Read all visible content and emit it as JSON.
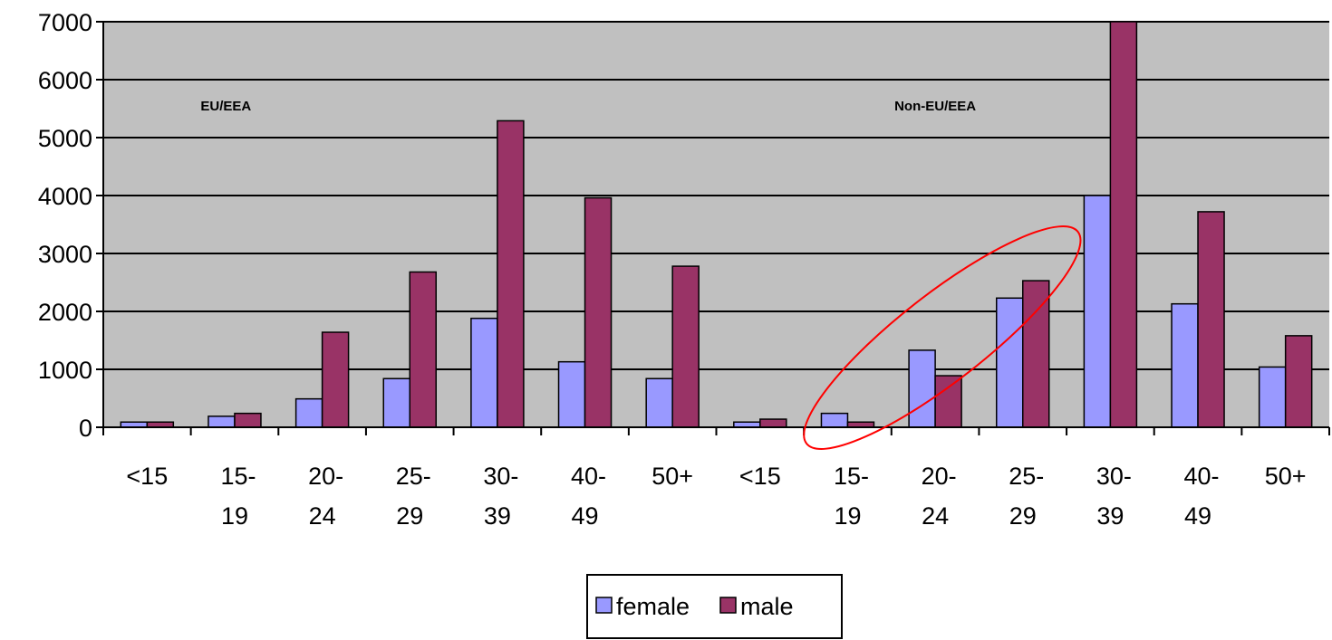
{
  "chart_data": {
    "type": "bar",
    "title": "",
    "xlabel": "",
    "ylabel": "",
    "ylim": [
      0,
      7000
    ],
    "yticks": [
      0,
      1000,
      2000,
      3000,
      4000,
      5000,
      6000,
      7000
    ],
    "grid": true,
    "legend_position": "bottom-center",
    "categories": [
      [
        "<15"
      ],
      [
        "15-",
        "19"
      ],
      [
        "20-",
        "24"
      ],
      [
        "25-",
        "29"
      ],
      [
        "30-",
        "39"
      ],
      [
        "40-",
        "49"
      ],
      [
        "50+"
      ],
      [
        "<15"
      ],
      [
        "15-",
        "19"
      ],
      [
        "20-",
        "24"
      ],
      [
        "25-",
        "29"
      ],
      [
        "30-",
        "39"
      ],
      [
        "40-",
        "49"
      ],
      [
        "50+"
      ]
    ],
    "series": [
      {
        "name": "female",
        "color": "#9999ff",
        "values": [
          90,
          190,
          490,
          840,
          1880,
          1130,
          840,
          90,
          240,
          1330,
          2230,
          4000,
          2130,
          1040
        ]
      },
      {
        "name": "male",
        "color": "#993366",
        "values": [
          90,
          240,
          1640,
          2680,
          5290,
          3960,
          2780,
          140,
          90,
          890,
          2530,
          7000,
          3720,
          1580
        ]
      }
    ],
    "annotations": [
      {
        "text": "EU/EEA"
      },
      {
        "text": "Non-EU/EEA"
      }
    ],
    "highlight": {
      "shape": "ellipse",
      "color": "#ff0000"
    },
    "plot_background": "#c0c0c0"
  }
}
